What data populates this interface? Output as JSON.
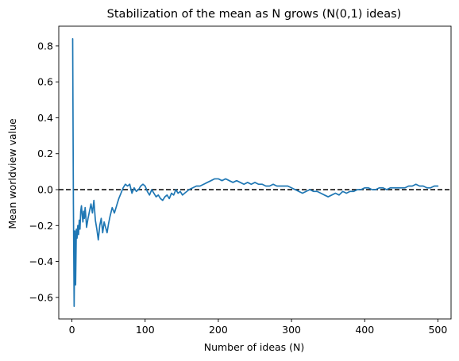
{
  "chart_data": {
    "type": "line",
    "title": "Stabilization of the mean as N grows (N(0,1) ideas)",
    "xlabel": "Number of ideas (N)",
    "ylabel": "Mean worldview value",
    "xlim": [
      -18,
      518
    ],
    "ylim": [
      -0.72,
      0.91
    ],
    "xticks": [
      0,
      100,
      200,
      300,
      400,
      500
    ],
    "yticks": [
      -0.6,
      -0.4,
      -0.2,
      0.0,
      0.2,
      0.4,
      0.6,
      0.8
    ],
    "xtick_labels": [
      "0",
      "100",
      "200",
      "300",
      "400",
      "500"
    ],
    "ytick_labels": [
      "−0.6",
      "−0.4",
      "−0.2",
      "0.0",
      "0.2",
      "0.4",
      "0.6",
      "0.8"
    ],
    "grid": false,
    "reference_line": {
      "y": 0.0,
      "style": "dashed",
      "color": "#000000"
    },
    "series": [
      {
        "color": "#1f77b4",
        "x": [
          1,
          2,
          3,
          4,
          5,
          6,
          7,
          8,
          9,
          10,
          11,
          12,
          13,
          14,
          15,
          16,
          17,
          18,
          19,
          20,
          22,
          24,
          26,
          28,
          30,
          32,
          34,
          36,
          38,
          40,
          42,
          44,
          46,
          48,
          50,
          52,
          55,
          58,
          61,
          64,
          67,
          70,
          73,
          76,
          79,
          82,
          85,
          88,
          91,
          94,
          97,
          100,
          103,
          106,
          109,
          112,
          115,
          118,
          121,
          124,
          127,
          130,
          133,
          136,
          139,
          142,
          145,
          148,
          151,
          154,
          157,
          160,
          165,
          170,
          175,
          180,
          185,
          190,
          195,
          200,
          205,
          210,
          215,
          220,
          225,
          230,
          235,
          240,
          245,
          250,
          255,
          260,
          265,
          270,
          275,
          280,
          285,
          290,
          295,
          300,
          305,
          310,
          315,
          320,
          325,
          330,
          335,
          340,
          345,
          350,
          355,
          360,
          365,
          370,
          375,
          380,
          385,
          390,
          395,
          400,
          405,
          410,
          415,
          420,
          425,
          430,
          435,
          440,
          445,
          450,
          455,
          460,
          465,
          470,
          475,
          480,
          485,
          490,
          495,
          500
        ],
        "y": [
          0.84,
          -0.08,
          -0.65,
          -0.23,
          -0.53,
          -0.22,
          -0.27,
          -0.2,
          -0.25,
          -0.17,
          -0.22,
          -0.12,
          -0.09,
          -0.14,
          -0.18,
          -0.12,
          -0.16,
          -0.1,
          -0.15,
          -0.21,
          -0.16,
          -0.12,
          -0.08,
          -0.13,
          -0.06,
          -0.17,
          -0.22,
          -0.28,
          -0.2,
          -0.16,
          -0.24,
          -0.18,
          -0.21,
          -0.24,
          -0.19,
          -0.15,
          -0.1,
          -0.13,
          -0.09,
          -0.05,
          -0.02,
          0.01,
          0.03,
          0.02,
          0.03,
          -0.02,
          0.01,
          -0.01,
          0.0,
          0.02,
          0.03,
          0.02,
          -0.01,
          -0.03,
          0.0,
          -0.02,
          -0.04,
          -0.03,
          -0.05,
          -0.06,
          -0.04,
          -0.03,
          -0.05,
          -0.02,
          -0.03,
          0.0,
          -0.02,
          -0.01,
          -0.03,
          -0.02,
          -0.01,
          0.0,
          0.01,
          0.02,
          0.02,
          0.03,
          0.04,
          0.05,
          0.06,
          0.06,
          0.05,
          0.06,
          0.05,
          0.04,
          0.05,
          0.04,
          0.03,
          0.04,
          0.03,
          0.04,
          0.03,
          0.03,
          0.02,
          0.02,
          0.03,
          0.02,
          0.02,
          0.02,
          0.02,
          0.01,
          0.0,
          -0.01,
          -0.02,
          -0.01,
          0.0,
          -0.01,
          -0.01,
          -0.02,
          -0.03,
          -0.04,
          -0.03,
          -0.02,
          -0.03,
          -0.01,
          -0.02,
          -0.01,
          -0.01,
          0.0,
          0.0,
          0.01,
          0.01,
          0.0,
          0.0,
          0.01,
          0.01,
          0.0,
          0.01,
          0.01,
          0.01,
          0.01,
          0.01,
          0.02,
          0.02,
          0.03,
          0.02,
          0.02,
          0.01,
          0.01,
          0.02,
          0.02
        ]
      }
    ]
  }
}
